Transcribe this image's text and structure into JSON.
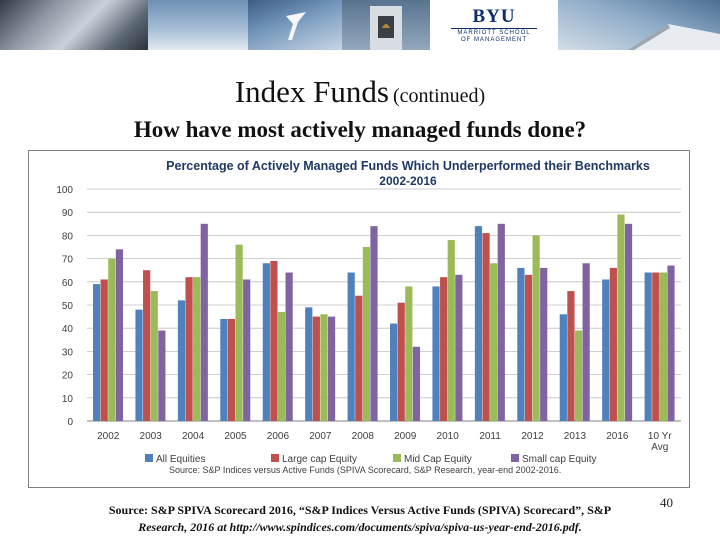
{
  "header": {
    "logo_brand": "BYU",
    "logo_sub1": "MARRIOTT SCHOOL",
    "logo_sub2": "OF MANAGEMENT"
  },
  "slide": {
    "title_main": "Index Funds",
    "title_note": "(continued)",
    "subtitle": "How have most actively managed funds done?",
    "page_number": "40",
    "footnote_line1": "Source: S&P SPIVA Scorecard 2016, “S&P Indices Versus Active Funds (SPIVA) Scorecard”, S&P",
    "footnote_line2": "Research, 2016 at http://www.spindices.com/documents/spiva/spiva-us-year-end-2016.pdf."
  },
  "colors": {
    "all_equities": "#4f81bd",
    "large_cap": "#c0504d",
    "mid_cap": "#9bbb59",
    "small_cap": "#8064a2",
    "title_blue": "#1f3864"
  },
  "chart_data": {
    "type": "bar",
    "title": "Percentage of Actively Managed Funds Which Underperformed their Benchmarks",
    "subtitle": "2002-2016",
    "categories": [
      "2002",
      "2003",
      "2004",
      "2005",
      "2006",
      "2007",
      "2008",
      "2009",
      "2010",
      "2011",
      "2012",
      "2013",
      "2016",
      "10 Yr Avg"
    ],
    "ylim": [
      0,
      100
    ],
    "yticks": [
      0,
      10,
      20,
      30,
      40,
      50,
      60,
      70,
      80,
      90,
      100
    ],
    "grid": true,
    "legend_position": "bottom",
    "source_note": "Source: S&P Indices versus Active Funds (SPIVA Scorecard, S&P Research, year-end 2002-2016.",
    "series": [
      {
        "name": "All Equities",
        "values": [
          59,
          48,
          52,
          44,
          68,
          49,
          64,
          42,
          58,
          84,
          66,
          46,
          61,
          64
        ]
      },
      {
        "name": "Large cap Equity",
        "values": [
          61,
          65,
          62,
          44,
          69,
          45,
          54,
          51,
          62,
          81,
          63,
          56,
          66,
          64
        ]
      },
      {
        "name": "Mid Cap Equity",
        "values": [
          70,
          56,
          62,
          76,
          47,
          46,
          75,
          58,
          78,
          68,
          80,
          39,
          89,
          64
        ]
      },
      {
        "name": "Small cap Equity",
        "values": [
          74,
          39,
          85,
          61,
          64,
          45,
          84,
          32,
          63,
          85,
          66,
          68,
          85,
          67
        ]
      }
    ]
  }
}
